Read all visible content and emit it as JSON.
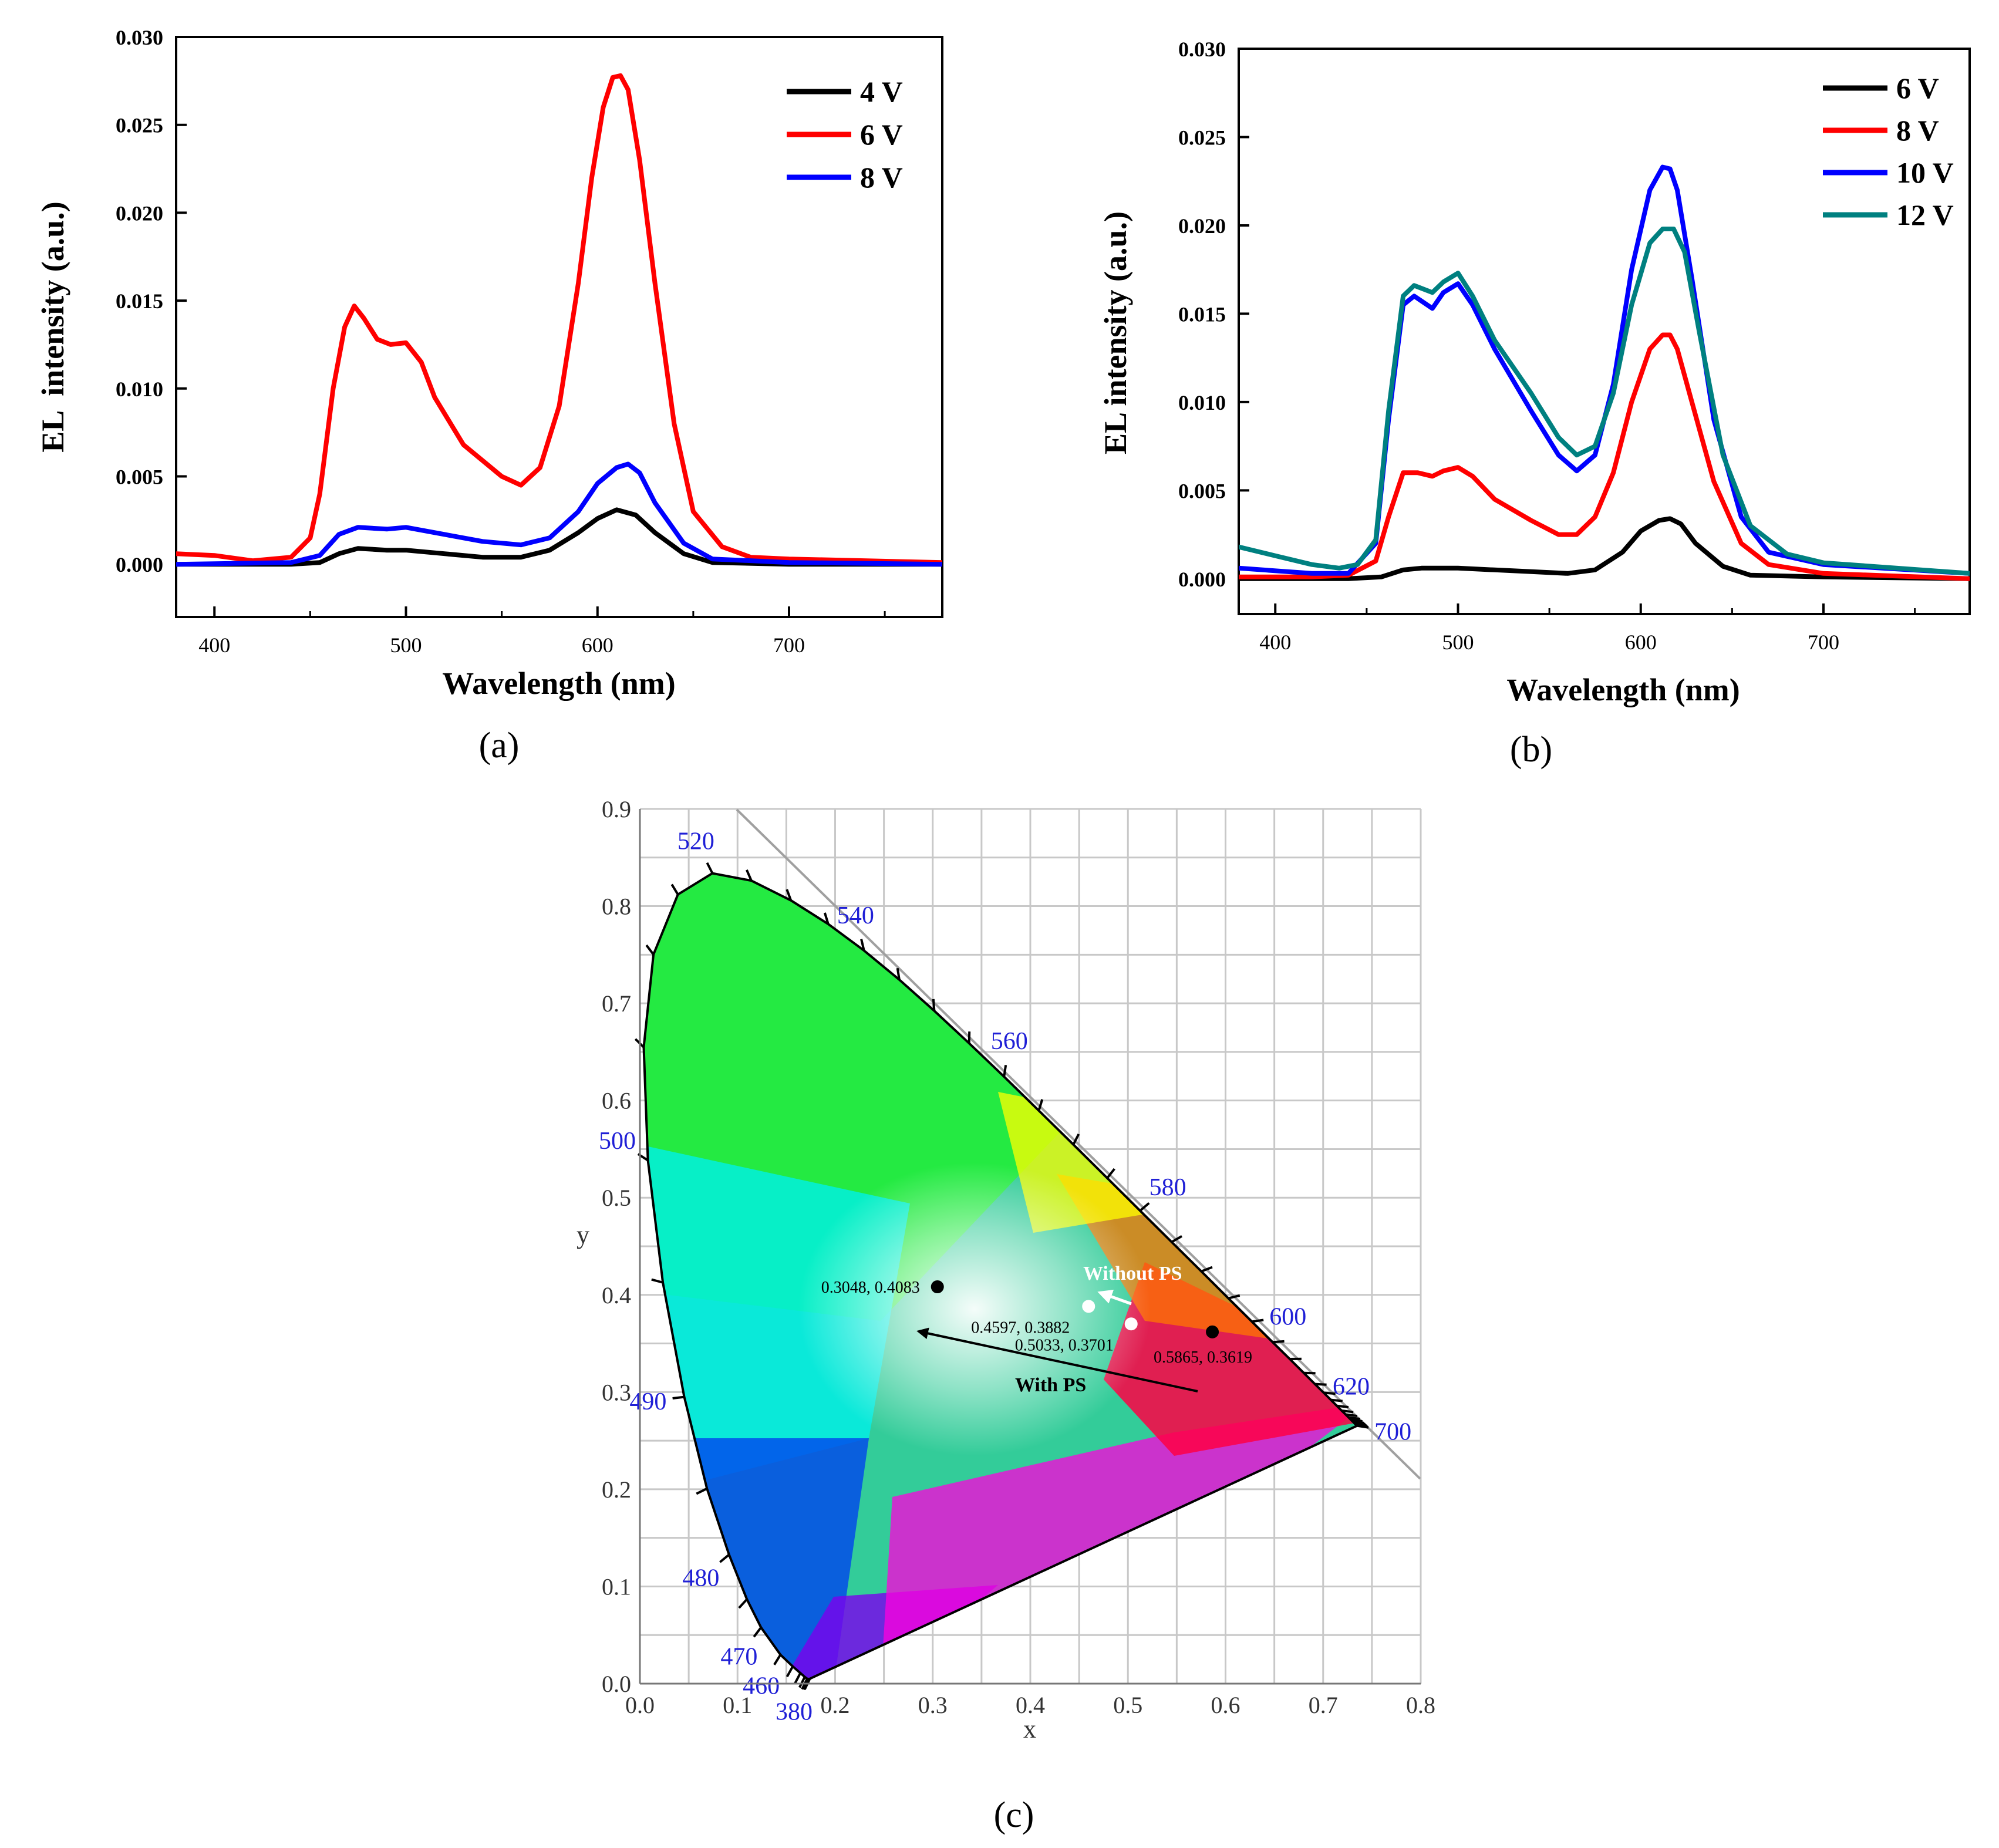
{
  "captions": [
    "(a)",
    "(b)",
    "(c)"
  ],
  "chart_data": [
    {
      "type": "line",
      "panel": "(a)",
      "xlabel": "Wavelength (nm)",
      "ylabel": "EL  intensity (a.u.)",
      "xlim": [
        380,
        780
      ],
      "ylim": [
        -0.003,
        0.03
      ],
      "xticks": [
        "400",
        "500",
        "600",
        "700"
      ],
      "xtick_values": [
        400,
        500,
        600,
        700
      ],
      "yticks": [
        "0.000",
        "0.005",
        "0.010",
        "0.015",
        "0.020",
        "0.025",
        "0.030"
      ],
      "ytick_values": [
        0,
        0.005,
        0.01,
        0.015,
        0.02,
        0.025,
        0.03
      ],
      "legend_position": "top-right",
      "series": [
        {
          "name": "4 V",
          "color": "#000000",
          "x": [
            380,
            440,
            455,
            465,
            475,
            490,
            500,
            520,
            540,
            560,
            575,
            590,
            600,
            610,
            620,
            630,
            645,
            660,
            700,
            780
          ],
          "y": [
            0,
            0,
            0.0001,
            0.0006,
            0.0009,
            0.0008,
            0.0008,
            0.0006,
            0.0004,
            0.0004,
            0.0008,
            0.0018,
            0.0026,
            0.0031,
            0.0028,
            0.0018,
            0.0006,
            0.0001,
            0,
            0
          ]
        },
        {
          "name": "6 V",
          "color": "#ff0000",
          "x": [
            380,
            400,
            420,
            440,
            450,
            455,
            462,
            468,
            473,
            478,
            485,
            492,
            500,
            508,
            515,
            530,
            550,
            560,
            570,
            580,
            590,
            597,
            603,
            608,
            612,
            616,
            622,
            630,
            640,
            650,
            665,
            680,
            700,
            780
          ],
          "y": [
            0.0006,
            0.0005,
            0.0002,
            0.0004,
            0.0015,
            0.004,
            0.01,
            0.0135,
            0.0147,
            0.014,
            0.0128,
            0.0125,
            0.0126,
            0.0115,
            0.0095,
            0.0068,
            0.005,
            0.0045,
            0.0055,
            0.009,
            0.016,
            0.022,
            0.026,
            0.0277,
            0.0278,
            0.027,
            0.023,
            0.016,
            0.008,
            0.003,
            0.001,
            0.0004,
            0.0003,
            0.0001
          ]
        },
        {
          "name": "8 V",
          "color": "#0000ff",
          "x": [
            380,
            440,
            455,
            465,
            475,
            490,
            500,
            520,
            540,
            560,
            575,
            590,
            600,
            610,
            616,
            622,
            630,
            645,
            660,
            700,
            780
          ],
          "y": [
            0,
            0.0001,
            0.0005,
            0.0017,
            0.0021,
            0.002,
            0.0021,
            0.0017,
            0.0013,
            0.0011,
            0.0015,
            0.003,
            0.0046,
            0.0055,
            0.0057,
            0.0052,
            0.0035,
            0.0012,
            0.0003,
            0.0001,
            0
          ]
        }
      ]
    },
    {
      "type": "line",
      "panel": "(b)",
      "xlabel": "Wavelength (nm)",
      "ylabel": "EL intensity (a.u.)",
      "xlim": [
        380,
        780
      ],
      "ylim": [
        -0.002,
        0.03
      ],
      "xticks": [
        "400",
        "500",
        "600",
        "700"
      ],
      "xtick_values": [
        400,
        500,
        600,
        700
      ],
      "yticks": [
        "0.000",
        "0.005",
        "0.010",
        "0.015",
        "0.020",
        "0.025",
        "0.030"
      ],
      "ytick_values": [
        0,
        0.005,
        0.01,
        0.015,
        0.02,
        0.025,
        0.03
      ],
      "legend_position": "top-right",
      "series": [
        {
          "name": "6 V",
          "color": "#000000",
          "x": [
            380,
            440,
            458,
            470,
            480,
            490,
            500,
            520,
            540,
            560,
            575,
            590,
            600,
            610,
            616,
            622,
            630,
            645,
            660,
            700,
            780
          ],
          "y": [
            0,
            0,
            0.0001,
            0.0005,
            0.0006,
            0.0006,
            0.0006,
            0.0005,
            0.0004,
            0.0003,
            0.0005,
            0.0015,
            0.0027,
            0.0033,
            0.0034,
            0.0031,
            0.002,
            0.0007,
            0.0002,
            0.0001,
            0
          ]
        },
        {
          "name": "8 V",
          "color": "#ff0000",
          "x": [
            380,
            420,
            440,
            455,
            462,
            470,
            478,
            486,
            492,
            500,
            508,
            520,
            540,
            555,
            565,
            575,
            585,
            595,
            605,
            612,
            616,
            620,
            628,
            640,
            655,
            670,
            700,
            780
          ],
          "y": [
            0.0001,
            0.0001,
            0.0002,
            0.001,
            0.0035,
            0.006,
            0.006,
            0.0058,
            0.0061,
            0.0063,
            0.0058,
            0.0045,
            0.0033,
            0.0025,
            0.0025,
            0.0035,
            0.006,
            0.01,
            0.013,
            0.0138,
            0.0138,
            0.013,
            0.01,
            0.0055,
            0.002,
            0.0008,
            0.0003,
            0
          ]
        },
        {
          "name": "10 V",
          "color": "#0000ff",
          "x": [
            380,
            420,
            440,
            455,
            462,
            470,
            476,
            486,
            492,
            500,
            508,
            520,
            540,
            555,
            565,
            575,
            585,
            595,
            605,
            612,
            616,
            620,
            628,
            640,
            655,
            670,
            700,
            780
          ],
          "y": [
            0.0006,
            0.0003,
            0.0003,
            0.002,
            0.009,
            0.0155,
            0.016,
            0.0153,
            0.0162,
            0.0167,
            0.0155,
            0.013,
            0.0095,
            0.007,
            0.0061,
            0.007,
            0.011,
            0.0175,
            0.022,
            0.0233,
            0.0232,
            0.022,
            0.017,
            0.009,
            0.0035,
            0.0015,
            0.0008,
            0.0003
          ]
        },
        {
          "name": "12 V",
          "color": "#008080",
          "x": [
            380,
            400,
            420,
            435,
            445,
            455,
            462,
            470,
            476,
            486,
            492,
            500,
            508,
            520,
            540,
            555,
            565,
            575,
            585,
            595,
            605,
            612,
            618,
            624,
            632,
            645,
            660,
            680,
            700,
            780
          ],
          "y": [
            0.0018,
            0.0013,
            0.0008,
            0.0006,
            0.0008,
            0.0022,
            0.0095,
            0.016,
            0.0166,
            0.0162,
            0.0168,
            0.0173,
            0.016,
            0.0135,
            0.0105,
            0.008,
            0.007,
            0.0075,
            0.0105,
            0.0155,
            0.019,
            0.0198,
            0.0198,
            0.0185,
            0.014,
            0.007,
            0.003,
            0.0014,
            0.0009,
            0.0003
          ]
        }
      ]
    },
    {
      "type": "scatter",
      "panel": "(c)",
      "xlabel": "x",
      "ylabel": "y",
      "xlim": [
        0.0,
        0.8
      ],
      "ylim": [
        0.0,
        0.9
      ],
      "xticks": [
        "0.0",
        "0.1",
        "0.2",
        "0.3",
        "0.4",
        "0.5",
        "0.6",
        "0.7",
        "0.8"
      ],
      "xtick_values": [
        0.0,
        0.1,
        0.2,
        0.3,
        0.4,
        0.5,
        0.6,
        0.7,
        0.8
      ],
      "yticks": [
        "0.0",
        "0.1",
        "0.2",
        "0.3",
        "0.4",
        "0.5",
        "0.6",
        "0.7",
        "0.8",
        "0.9"
      ],
      "ytick_values": [
        0.0,
        0.1,
        0.2,
        0.3,
        0.4,
        0.5,
        0.6,
        0.7,
        0.8,
        0.9
      ],
      "grid": true,
      "spectral_locus": [
        [
          0.1741,
          0.005
        ],
        [
          0.1738,
          0.0049
        ],
        [
          0.173,
          0.0048
        ],
        [
          0.1714,
          0.0051
        ],
        [
          0.1689,
          0.0069
        ],
        [
          0.1644,
          0.0109
        ],
        [
          0.1566,
          0.0177
        ],
        [
          0.144,
          0.0297
        ],
        [
          0.1241,
          0.0578
        ],
        [
          0.1096,
          0.0868
        ],
        [
          0.0913,
          0.1327
        ],
        [
          0.0687,
          0.2007
        ],
        [
          0.0454,
          0.295
        ],
        [
          0.0235,
          0.4127
        ],
        [
          0.0082,
          0.5384
        ],
        [
          0.0039,
          0.6548
        ],
        [
          0.0139,
          0.7502
        ],
        [
          0.0389,
          0.812
        ],
        [
          0.0743,
          0.8338
        ],
        [
          0.1142,
          0.8262
        ],
        [
          0.1547,
          0.8059
        ],
        [
          0.1929,
          0.7816
        ],
        [
          0.2296,
          0.7543
        ],
        [
          0.2658,
          0.7243
        ],
        [
          0.3016,
          0.6923
        ],
        [
          0.3373,
          0.6589
        ],
        [
          0.3731,
          0.6245
        ],
        [
          0.4087,
          0.5896
        ],
        [
          0.4441,
          0.5547
        ],
        [
          0.4788,
          0.5202
        ],
        [
          0.5125,
          0.4866
        ],
        [
          0.5448,
          0.4544
        ],
        [
          0.5752,
          0.4242
        ],
        [
          0.6029,
          0.3965
        ],
        [
          0.627,
          0.3725
        ],
        [
          0.6482,
          0.3514
        ],
        [
          0.6658,
          0.334
        ],
        [
          0.6801,
          0.3197
        ],
        [
          0.6915,
          0.3083
        ],
        [
          0.7006,
          0.2993
        ],
        [
          0.7079,
          0.292
        ],
        [
          0.714,
          0.2859
        ],
        [
          0.719,
          0.2809
        ],
        [
          0.723,
          0.277
        ],
        [
          0.726,
          0.274
        ],
        [
          0.7283,
          0.2717
        ],
        [
          0.73,
          0.27
        ],
        [
          0.7311,
          0.2689
        ],
        [
          0.732,
          0.268
        ],
        [
          0.7327,
          0.2673
        ],
        [
          0.7334,
          0.2666
        ],
        [
          0.734,
          0.266
        ],
        [
          0.7344,
          0.2656
        ],
        [
          0.7346,
          0.2654
        ],
        [
          0.7347,
          0.2653
        ]
      ],
      "wavelength_labels": [
        {
          "label": "380",
          "x": 0.1741,
          "y": 0.005
        },
        {
          "label": "460",
          "x": 0.144,
          "y": 0.0297
        },
        {
          "label": "470",
          "x": 0.1241,
          "y": 0.0578
        },
        {
          "label": "480",
          "x": 0.0913,
          "y": 0.1327
        },
        {
          "label": "490",
          "x": 0.0454,
          "y": 0.295
        },
        {
          "label": "500",
          "x": 0.0082,
          "y": 0.5384
        },
        {
          "label": "520",
          "x": 0.0743,
          "y": 0.8338
        },
        {
          "label": "540",
          "x": 0.2296,
          "y": 0.7543
        },
        {
          "label": "560",
          "x": 0.3731,
          "y": 0.6245
        },
        {
          "label": "580",
          "x": 0.5125,
          "y": 0.4866
        },
        {
          "label": "600",
          "x": 0.627,
          "y": 0.3725
        },
        {
          "label": "620",
          "x": 0.6915,
          "y": 0.3083
        },
        {
          "label": "700",
          "x": 0.7347,
          "y": 0.2653
        }
      ],
      "points": [
        {
          "label": "0.3048, 0.4083",
          "x": 0.3048,
          "y": 0.4083,
          "color": "#000000"
        },
        {
          "label": "0.4597, 0.3882",
          "x": 0.4597,
          "y": 0.3882,
          "color": "#ffffff"
        },
        {
          "label": "0.5033, 0.3701",
          "x": 0.5033,
          "y": 0.3701,
          "color": "#ffffff"
        },
        {
          "label": "0.5865, 0.3619",
          "x": 0.5865,
          "y": 0.3619,
          "color": "#000000"
        }
      ],
      "annotations": [
        {
          "text": "Without PS",
          "color": "#ffffff"
        },
        {
          "text": "With PS",
          "color": "#000000"
        }
      ]
    }
  ]
}
